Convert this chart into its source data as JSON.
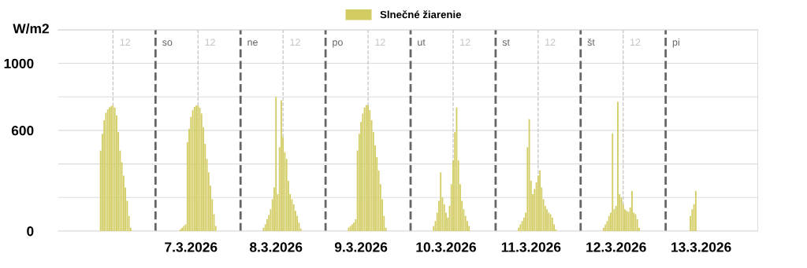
{
  "chart_data": {
    "type": "bar",
    "ylabel": "W/m2",
    "series": [
      {
        "name": "Slnečné žiarenie",
        "color": "#d2cc62",
        "x": [
          "2026-03-06T08:30",
          "2026-03-06T09:00",
          "2026-03-06T09:30",
          "2026-03-06T10:00",
          "2026-03-06T10:30",
          "2026-03-06T11:00",
          "2026-03-06T11:30",
          "2026-03-06T12:00",
          "2026-03-06T12:30",
          "2026-03-06T13:00",
          "2026-03-06T13:30",
          "2026-03-06T14:00",
          "2026-03-06T14:30",
          "2026-03-06T15:00",
          "2026-03-06T15:30",
          "2026-03-06T16:00",
          "2026-03-06T16:30",
          "2026-03-06T17:00",
          "2026-03-07T07:00",
          "2026-03-07T07:30",
          "2026-03-07T08:00",
          "2026-03-07T08:30",
          "2026-03-07T09:00",
          "2026-03-07T09:30",
          "2026-03-07T10:00",
          "2026-03-07T10:30",
          "2026-03-07T11:00",
          "2026-03-07T11:30",
          "2026-03-07T12:00",
          "2026-03-07T12:30",
          "2026-03-07T13:00",
          "2026-03-07T13:30",
          "2026-03-07T14:00",
          "2026-03-07T14:30",
          "2026-03-07T15:00",
          "2026-03-07T15:30",
          "2026-03-07T16:00",
          "2026-03-07T16:30",
          "2026-03-07T17:00",
          "2026-03-08T06:30",
          "2026-03-08T07:00",
          "2026-03-08T07:30",
          "2026-03-08T08:00",
          "2026-03-08T08:30",
          "2026-03-08T09:00",
          "2026-03-08T09:30",
          "2026-03-08T10:00",
          "2026-03-08T10:30",
          "2026-03-08T11:00",
          "2026-03-08T11:30",
          "2026-03-08T12:00",
          "2026-03-08T12:30",
          "2026-03-08T13:00",
          "2026-03-08T13:30",
          "2026-03-08T14:00",
          "2026-03-08T14:30",
          "2026-03-08T15:00",
          "2026-03-08T15:30",
          "2026-03-08T16:00",
          "2026-03-08T16:30",
          "2026-03-08T17:00",
          "2026-03-09T06:30",
          "2026-03-09T07:00",
          "2026-03-09T07:30",
          "2026-03-09T08:00",
          "2026-03-09T08:30",
          "2026-03-09T09:00",
          "2026-03-09T09:30",
          "2026-03-09T10:00",
          "2026-03-09T10:30",
          "2026-03-09T11:00",
          "2026-03-09T11:30",
          "2026-03-09T12:00",
          "2026-03-09T12:30",
          "2026-03-09T13:00",
          "2026-03-09T13:30",
          "2026-03-09T14:00",
          "2026-03-09T14:30",
          "2026-03-09T15:00",
          "2026-03-09T15:30",
          "2026-03-09T16:00",
          "2026-03-09T16:30",
          "2026-03-09T17:00",
          "2026-03-10T06:30",
          "2026-03-10T07:00",
          "2026-03-10T07:30",
          "2026-03-10T08:00",
          "2026-03-10T08:30",
          "2026-03-10T09:00",
          "2026-03-10T09:30",
          "2026-03-10T10:00",
          "2026-03-10T10:30",
          "2026-03-10T11:00",
          "2026-03-10T11:30",
          "2026-03-10T12:00",
          "2026-03-10T12:30",
          "2026-03-10T13:00",
          "2026-03-10T13:30",
          "2026-03-10T14:00",
          "2026-03-10T14:30",
          "2026-03-10T15:00",
          "2026-03-10T15:30",
          "2026-03-10T16:00",
          "2026-03-10T16:30",
          "2026-03-11T06:30",
          "2026-03-11T07:00",
          "2026-03-11T07:30",
          "2026-03-11T08:00",
          "2026-03-11T08:30",
          "2026-03-11T09:00",
          "2026-03-11T09:30",
          "2026-03-11T10:00",
          "2026-03-11T10:30",
          "2026-03-11T11:00",
          "2026-03-11T11:30",
          "2026-03-11T12:00",
          "2026-03-11T12:30",
          "2026-03-11T13:00",
          "2026-03-11T13:30",
          "2026-03-11T14:00",
          "2026-03-11T14:30",
          "2026-03-11T15:00",
          "2026-03-11T15:30",
          "2026-03-11T16:00",
          "2026-03-11T16:30",
          "2026-03-11T17:00",
          "2026-03-12T06:30",
          "2026-03-12T07:00",
          "2026-03-12T07:30",
          "2026-03-12T08:00",
          "2026-03-12T08:30",
          "2026-03-12T09:00",
          "2026-03-12T09:30",
          "2026-03-12T10:00",
          "2026-03-12T10:30",
          "2026-03-12T11:00",
          "2026-03-12T11:30",
          "2026-03-12T12:00",
          "2026-03-12T12:30",
          "2026-03-12T13:00",
          "2026-03-12T13:30",
          "2026-03-12T14:00",
          "2026-03-12T14:30",
          "2026-03-12T15:00",
          "2026-03-12T15:30",
          "2026-03-12T16:00",
          "2026-03-12T16:30",
          "2026-03-13T07:00",
          "2026-03-13T07:30",
          "2026-03-13T08:00",
          "2026-03-13T08:30"
        ],
        "values": [
          480,
          580,
          660,
          705,
          725,
          738,
          745,
          748,
          735,
          690,
          590,
          480,
          410,
          330,
          260,
          180,
          90,
          20,
          10,
          20,
          30,
          40,
          530,
          610,
          680,
          720,
          740,
          748,
          750,
          735,
          700,
          620,
          520,
          430,
          350,
          270,
          190,
          100,
          30,
          20,
          40,
          70,
          95,
          130,
          190,
          260,
          800,
          220,
          500,
          780,
          560,
          470,
          430,
          300,
          220,
          190,
          160,
          120,
          90,
          50,
          15,
          20,
          30,
          40,
          50,
          70,
          480,
          580,
          650,
          700,
          735,
          752,
          750,
          720,
          660,
          590,
          510,
          440,
          360,
          280,
          190,
          90,
          20,
          30,
          60,
          110,
          180,
          350,
          200,
          160,
          110,
          80,
          150,
          280,
          420,
          590,
          737,
          420,
          280,
          180,
          130,
          90,
          60,
          30,
          20,
          40,
          60,
          80,
          110,
          500,
          667,
          300,
          220,
          250,
          290,
          330,
          360,
          260,
          190,
          150,
          130,
          110,
          100,
          80,
          40,
          10,
          20,
          40,
          60,
          90,
          110,
          582,
          130,
          150,
          770,
          220,
          200,
          160,
          130,
          120,
          115,
          140,
          239,
          110,
          100,
          70,
          20,
          90,
          130,
          160,
          239
        ]
      }
    ],
    "xlim": [
      "2026-03-05T20:30",
      "2026-03-14T02:00"
    ],
    "xticks": [
      {
        "value": "2026-03-07T10:00",
        "label": "7.3.2026"
      },
      {
        "value": "2026-03-08T10:00",
        "label": "8.3.2026"
      },
      {
        "value": "2026-03-09T10:00",
        "label": "9.3.2026"
      },
      {
        "value": "2026-03-10T10:00",
        "label": "10.3.2026"
      },
      {
        "value": "2026-03-11T10:00",
        "label": "11.3.2026"
      },
      {
        "value": "2026-03-12T10:00",
        "label": "12.3.2026"
      },
      {
        "value": "2026-03-13T10:00",
        "label": "13.3.2026"
      }
    ],
    "ylim": [
      0,
      1200
    ],
    "yticks": [
      0,
      {
        "value": 200,
        "label": null
      },
      {
        "value": 400,
        "label": null
      },
      600,
      {
        "value": 800,
        "label": null
      },
      1000,
      {
        "value": 1200,
        "label": null
      }
    ],
    "grid": "y",
    "legend": "top",
    "ref_lines": [
      {
        "axis": "x",
        "value": "2026-03-06T12:00",
        "label": "12",
        "color": "#c4c4c4",
        "line_style": "dashed"
      },
      {
        "axis": "x",
        "value": "2026-03-07T00:00",
        "label": "so",
        "color": "#666666",
        "line_style": "dashed"
      },
      {
        "axis": "x",
        "value": "2026-03-07T12:00",
        "label": "12",
        "color": "#c4c4c4",
        "line_style": "dashed"
      },
      {
        "axis": "x",
        "value": "2026-03-08T00:00",
        "label": "ne",
        "color": "#666666",
        "line_style": "dashed"
      },
      {
        "axis": "x",
        "value": "2026-03-08T12:00",
        "label": "12",
        "color": "#c4c4c4",
        "line_style": "dashed"
      },
      {
        "axis": "x",
        "value": "2026-03-09T00:00",
        "label": "po",
        "color": "#666666",
        "line_style": "dashed"
      },
      {
        "axis": "x",
        "value": "2026-03-09T12:00",
        "label": "12",
        "color": "#c4c4c4",
        "line_style": "dashed"
      },
      {
        "axis": "x",
        "value": "2026-03-10T00:00",
        "label": "ut",
        "color": "#666666",
        "line_style": "dashed"
      },
      {
        "axis": "x",
        "value": "2026-03-10T12:00",
        "label": "12",
        "color": "#c4c4c4",
        "line_style": "dashed"
      },
      {
        "axis": "x",
        "value": "2026-03-11T00:00",
        "label": "st",
        "color": "#666666",
        "line_style": "dashed"
      },
      {
        "axis": "x",
        "value": "2026-03-11T12:00",
        "label": "12",
        "color": "#c4c4c4",
        "line_style": "dashed"
      },
      {
        "axis": "x",
        "value": "2026-03-12T00:00",
        "label": "št",
        "color": "#666666",
        "line_style": "dashed"
      },
      {
        "axis": "x",
        "value": "2026-03-12T12:00",
        "label": "12",
        "color": "#c4c4c4",
        "line_style": "dashed"
      },
      {
        "axis": "x",
        "value": "2026-03-13T00:00",
        "label": "pi",
        "color": "#666666",
        "line_style": "dashed"
      }
    ]
  }
}
